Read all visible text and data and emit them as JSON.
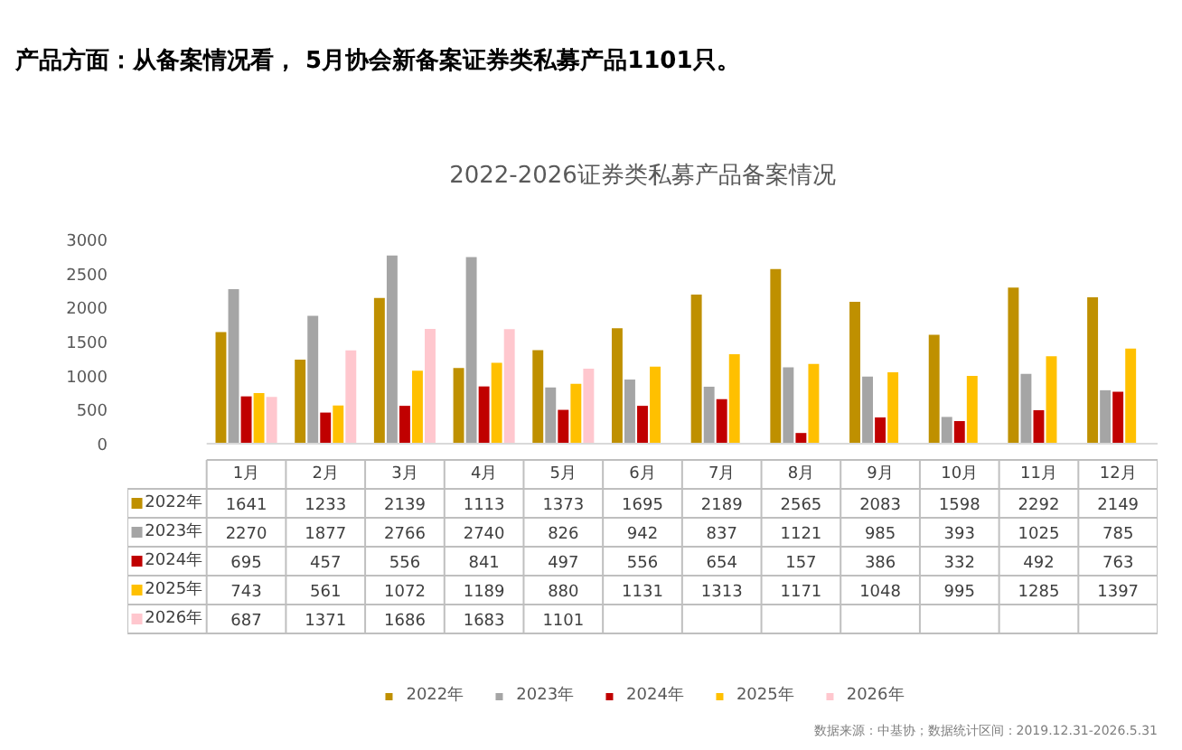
{
  "chart_data": {
    "type": "bar",
    "title": "2022-2026证券类私募产品备案情况",
    "categories": [
      "1月",
      "2月",
      "3月",
      "4月",
      "5月",
      "6月",
      "7月",
      "8月",
      "9月",
      "10月",
      "11月",
      "12月"
    ],
    "series": [
      {
        "name": "2022年",
        "color": "#bf9000",
        "values": [
          1641,
          1233,
          2139,
          1113,
          1373,
          1695,
          2189,
          2565,
          2083,
          1598,
          2292,
          2149
        ]
      },
      {
        "name": "2023年",
        "color": "#a5a5a5",
        "values": [
          2270,
          1877,
          2766,
          2740,
          826,
          942,
          837,
          1121,
          985,
          393,
          1025,
          785
        ]
      },
      {
        "name": "2024年",
        "color": "#c00000",
        "values": [
          695,
          457,
          556,
          841,
          497,
          556,
          654,
          157,
          386,
          332,
          492,
          763
        ]
      },
      {
        "name": "2025年",
        "color": "#ffc000",
        "values": [
          743,
          561,
          1072,
          1189,
          880,
          1131,
          1313,
          1171,
          1048,
          995,
          1285,
          1397
        ]
      },
      {
        "name": "2026年",
        "color": "#ffc7ce",
        "values": [
          687,
          1371,
          1686,
          1683,
          1101,
          null,
          null,
          null,
          null,
          null,
          null,
          null
        ]
      }
    ],
    "ylim": [
      0,
      3000
    ],
    "yticks": [
      0,
      500,
      1000,
      1500,
      2000,
      2500,
      3000
    ],
    "grid": false,
    "legend": "bottom",
    "data_labels": true,
    "annotations": [
      "产品方面：从备案情况看， 5月协会新备案证券类私募产品1101只。",
      "数据来源：中基协；数据统计区间：2019.12.31-2026.5.31"
    ]
  }
}
